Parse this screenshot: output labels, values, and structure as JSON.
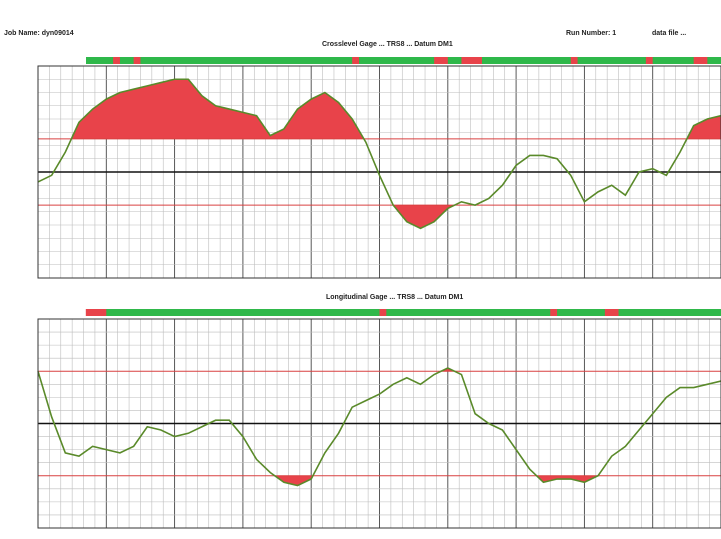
{
  "header": {
    "job_name": "Job Name: dyn09014",
    "run_number": "Run Number: 1",
    "data_label": "data file ..."
  },
  "colors": {
    "trace": "#5a8a2a",
    "exceed_fill": "#e8434a",
    "threshold_line": "#d94040",
    "ok_bar": "#2fb84a",
    "grid_minor": "#bdbdbd",
    "grid_major": "#4a4a4a"
  },
  "chart_data": [
    {
      "type": "line",
      "title": "Crosslevel Gage ... TRS8 ... Datum DM1",
      "ylim": [
        -1.6,
        1.6
      ],
      "thresholds": [
        0.5,
        -0.5
      ],
      "x": [
        0,
        2,
        4,
        6,
        8,
        10,
        12,
        14,
        16,
        18,
        20,
        22,
        24,
        26,
        28,
        30,
        32,
        34,
        36,
        38,
        40,
        42,
        44,
        46,
        48,
        50,
        52,
        54,
        56,
        58,
        60,
        62,
        64,
        66,
        68,
        70,
        72,
        74,
        76,
        78,
        80,
        82,
        84,
        86,
        88,
        90,
        92,
        94,
        96,
        98,
        100
      ],
      "y": [
        -0.15,
        -0.05,
        0.3,
        0.75,
        0.95,
        1.1,
        1.2,
        1.25,
        1.3,
        1.35,
        1.4,
        1.4,
        1.15,
        1.0,
        0.95,
        0.9,
        0.85,
        0.55,
        0.65,
        0.95,
        1.1,
        1.2,
        1.05,
        0.8,
        0.45,
        -0.05,
        -0.5,
        -0.75,
        -0.85,
        -0.75,
        -0.55,
        -0.45,
        -0.5,
        -0.4,
        -0.2,
        0.1,
        0.25,
        0.25,
        0.2,
        -0.05,
        -0.45,
        -0.3,
        -0.2,
        -0.35,
        0.0,
        0.05,
        -0.05,
        0.3,
        0.7,
        0.8,
        0.85
      ],
      "status_bar_red_ranges": [
        [
          11,
          12
        ],
        [
          14,
          15
        ],
        [
          46,
          47
        ],
        [
          58,
          60
        ],
        [
          62,
          65
        ],
        [
          78,
          79
        ],
        [
          89,
          90
        ],
        [
          96,
          98
        ]
      ]
    },
    {
      "type": "line",
      "title": "Longitudinal Gage ... TRS8 ... Datum DM1",
      "ylim": [
        -1.6,
        1.6
      ],
      "thresholds": [
        0.8,
        -0.8
      ],
      "x": [
        0,
        2,
        4,
        6,
        8,
        10,
        12,
        14,
        16,
        18,
        20,
        22,
        24,
        26,
        28,
        30,
        32,
        34,
        36,
        38,
        40,
        42,
        44,
        46,
        48,
        50,
        52,
        54,
        56,
        58,
        60,
        62,
        64,
        66,
        68,
        70,
        72,
        74,
        76,
        78,
        80,
        82,
        84,
        86,
        88,
        90,
        92,
        94,
        96,
        98,
        100
      ],
      "y": [
        0.8,
        0.1,
        -0.45,
        -0.5,
        -0.35,
        -0.4,
        -0.45,
        -0.35,
        -0.05,
        -0.1,
        -0.2,
        -0.15,
        -0.05,
        0.05,
        0.05,
        -0.2,
        -0.55,
        -0.75,
        -0.9,
        -0.95,
        -0.85,
        -0.45,
        -0.15,
        0.25,
        0.35,
        0.45,
        0.6,
        0.7,
        0.6,
        0.75,
        0.85,
        0.75,
        0.15,
        0.0,
        -0.1,
        -0.4,
        -0.7,
        -0.9,
        -0.85,
        -0.85,
        -0.9,
        -0.8,
        -0.5,
        -0.35,
        -0.1,
        0.15,
        0.4,
        0.55,
        0.55,
        0.6,
        0.65
      ],
      "status_bar_red_ranges": [
        [
          7,
          10
        ],
        [
          50,
          51
        ],
        [
          75,
          76
        ],
        [
          83,
          85
        ]
      ]
    }
  ]
}
